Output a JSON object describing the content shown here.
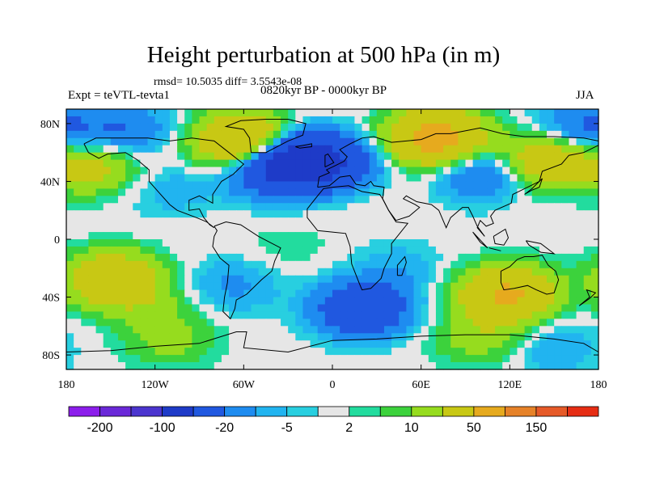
{
  "title": "Height perturbation at 500 hPa (in m)",
  "stats": "rmsd= 10.5035 diff= 3.5543e-08",
  "experiment": "Expt = teVTL-tevta1",
  "period": "0820kyr BP - 0000kyr BP",
  "season": "JJA",
  "chart_data": {
    "type": "heatmap",
    "projection": "cylindrical-equidistant",
    "xlim": [
      -180,
      180
    ],
    "ylim": [
      -90,
      90
    ],
    "x_ticks": [
      {
        "value": -180,
        "label": "180"
      },
      {
        "value": -120,
        "label": "120W"
      },
      {
        "value": -60,
        "label": "60W"
      },
      {
        "value": 0,
        "label": "0"
      },
      {
        "value": 60,
        "label": "60E"
      },
      {
        "value": 120,
        "label": "120E"
      },
      {
        "value": 180,
        "label": "180"
      }
    ],
    "y_ticks": [
      {
        "value": 80,
        "label": "80N"
      },
      {
        "value": 40,
        "label": "40N"
      },
      {
        "value": 0,
        "label": "0"
      },
      {
        "value": -40,
        "label": "40S"
      },
      {
        "value": -80,
        "label": "80S"
      }
    ],
    "colorbar": {
      "colors": [
        "#8c1eeb",
        "#6a28d8",
        "#4b35cf",
        "#1e3bc8",
        "#2058e0",
        "#1e8cf0",
        "#21b4f0",
        "#28cfe0",
        "#e6e6e6",
        "#22dc9e",
        "#3cd23c",
        "#96dc1e",
        "#c8c814",
        "#e6aa1e",
        "#e68228",
        "#e65a28",
        "#e62d14"
      ],
      "labels": [
        {
          "after_index": 0,
          "text": "-200"
        },
        {
          "after_index": 2,
          "text": "-100"
        },
        {
          "after_index": 4,
          "text": "-20"
        },
        {
          "after_index": 6,
          "text": "-5"
        },
        {
          "after_index": 8,
          "text": "2"
        },
        {
          "after_index": 10,
          "text": "10"
        },
        {
          "after_index": 12,
          "text": "50"
        },
        {
          "after_index": 14,
          "text": "150"
        }
      ]
    },
    "fill_background_value": 0,
    "anomaly_centers": [
      {
        "lon": -140,
        "lat": 76,
        "value": -20
      },
      {
        "lon": -60,
        "lat": 68,
        "value": 60
      },
      {
        "lon": -40,
        "lat": 48,
        "value": -40
      },
      {
        "lon": -20,
        "lat": 56,
        "value": -60
      },
      {
        "lon": 10,
        "lat": 50,
        "value": -25
      },
      {
        "lon": 70,
        "lat": 70,
        "value": 70
      },
      {
        "lon": 100,
        "lat": 46,
        "value": -25
      },
      {
        "lon": 145,
        "lat": 55,
        "value": 40
      },
      {
        "lon": 170,
        "lat": 76,
        "value": -25
      },
      {
        "lon": -162,
        "lat": 50,
        "value": 25
      },
      {
        "lon": -110,
        "lat": 34,
        "value": -8
      },
      {
        "lon": 30,
        "lat": 38,
        "value": 5
      },
      {
        "lon": -148,
        "lat": -28,
        "value": 45
      },
      {
        "lon": -68,
        "lat": -32,
        "value": -12
      },
      {
        "lon": -30,
        "lat": -6,
        "value": 4
      },
      {
        "lon": 20,
        "lat": -48,
        "value": -45
      },
      {
        "lon": 45,
        "lat": -20,
        "value": -8
      },
      {
        "lon": 118,
        "lat": -38,
        "value": 55
      },
      {
        "lon": 100,
        "lat": -68,
        "value": 15
      },
      {
        "lon": -110,
        "lat": -70,
        "value": 12
      },
      {
        "lon": 150,
        "lat": -75,
        "value": -10
      },
      {
        "lon": -120,
        "lat": -48,
        "value": 8
      }
    ]
  }
}
